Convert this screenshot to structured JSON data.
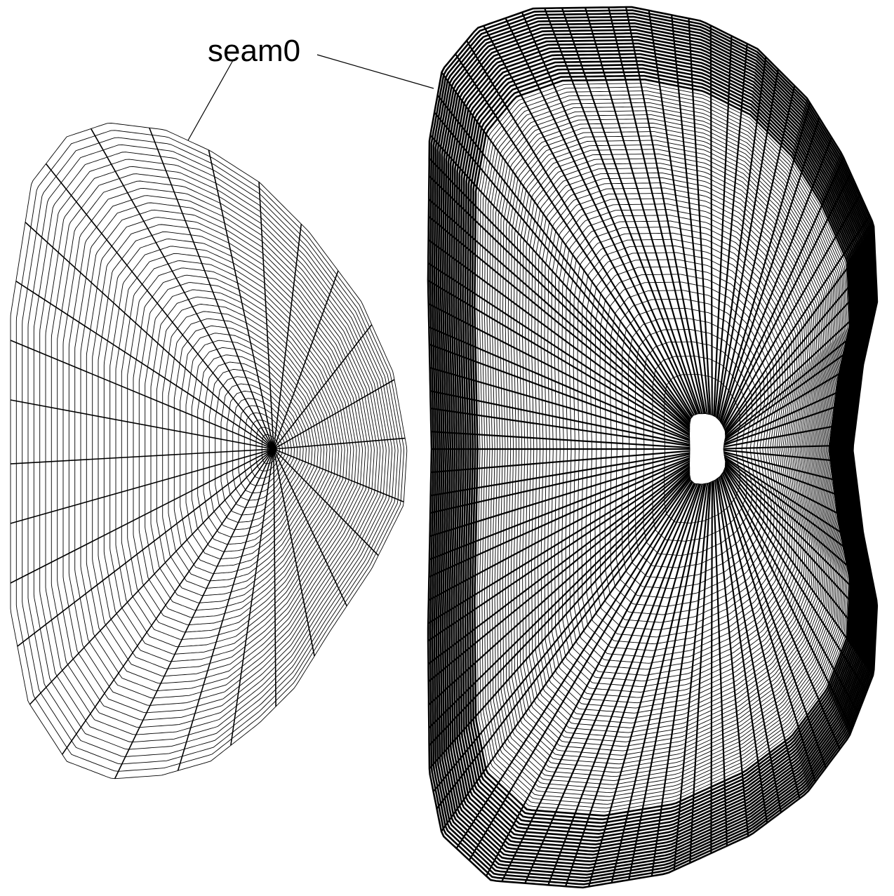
{
  "label": "seam0"
}
